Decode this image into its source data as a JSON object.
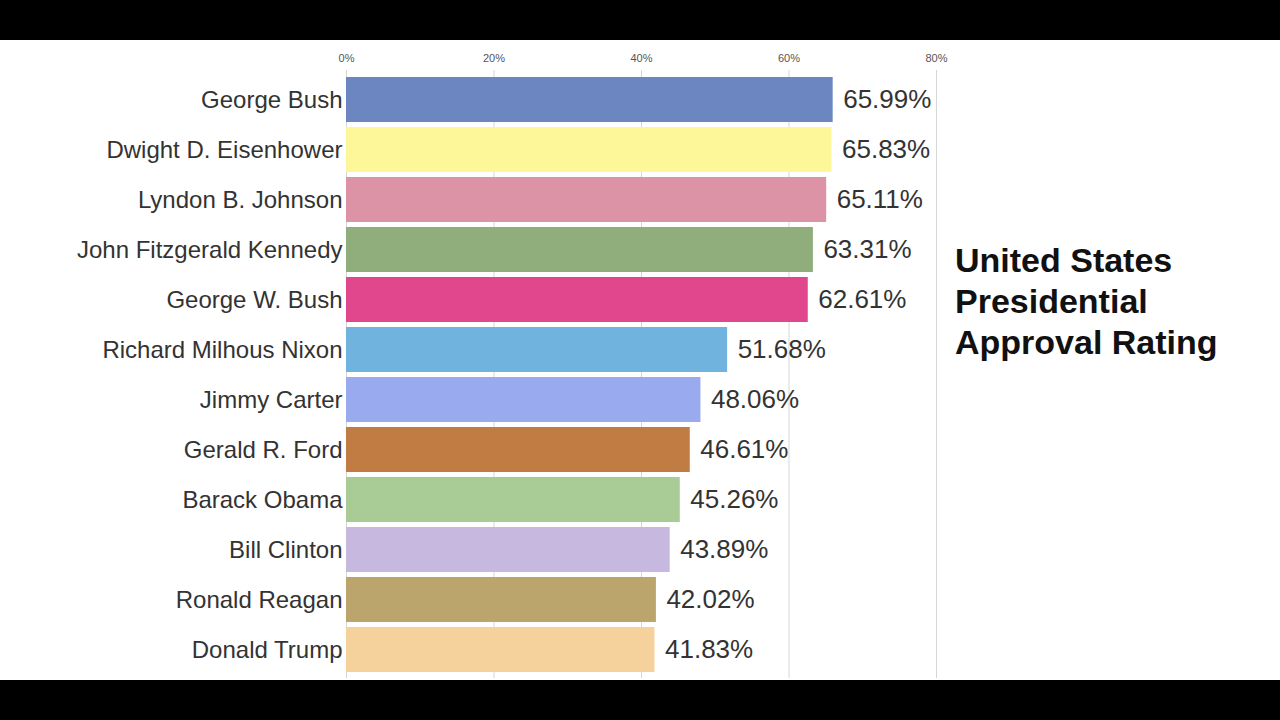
{
  "chart_data": {
    "type": "bar",
    "title": "United States Presidential Approval Rating",
    "orientation": "horizontal",
    "categories": [
      "George Bush",
      "Dwight D. Eisenhower",
      "Lyndon B. Johnson",
      "John Fitzgerald Kennedy",
      "George W. Bush",
      "Richard Milhous Nixon",
      "Jimmy Carter",
      "Gerald R. Ford",
      "Barack Obama",
      "Bill Clinton",
      "Ronald Reagan",
      "Donald Trump"
    ],
    "values": [
      65.99,
      65.83,
      65.11,
      63.31,
      62.61,
      51.68,
      48.06,
      46.61,
      45.26,
      43.89,
      42.02,
      41.83
    ],
    "value_labels": [
      "65.99%",
      "65.83%",
      "65.11%",
      "63.31%",
      "62.61%",
      "51.68%",
      "48.06%",
      "46.61%",
      "45.26%",
      "43.89%",
      "42.02%",
      "41.83%"
    ],
    "colors": [
      "#6b86c1",
      "#fdf79a",
      "#dd93a6",
      "#8fae7c",
      "#e0478d",
      "#6fb3de",
      "#99abee",
      "#c07c42",
      "#a9cc97",
      "#c7b8df",
      "#bba56c",
      "#f5d19c"
    ],
    "xlim": [
      0,
      80
    ],
    "xticks": [
      {
        "value": 0,
        "label": "0%"
      },
      {
        "value": 20,
        "label": "20%"
      },
      {
        "value": 40,
        "label": "40%"
      },
      {
        "value": 60,
        "label": "60%"
      },
      {
        "value": 80,
        "label": "80%"
      }
    ],
    "grid": true,
    "data_labels": true
  }
}
